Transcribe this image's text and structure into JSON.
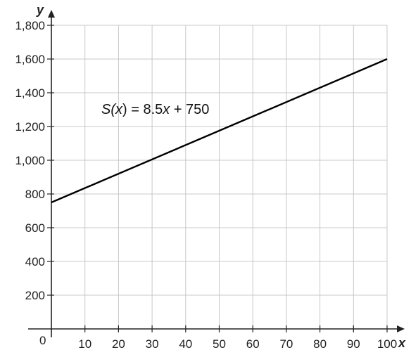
{
  "chart_data": {
    "type": "line",
    "xlabel": "x",
    "ylabel": "y",
    "xlim": [
      0,
      100
    ],
    "ylim": [
      0,
      1800
    ],
    "x_ticks": [
      10,
      20,
      30,
      40,
      50,
      60,
      70,
      80,
      90,
      100
    ],
    "y_ticks": [
      200,
      400,
      600,
      800,
      1000,
      1200,
      1400,
      1600,
      1800
    ],
    "x_tick_labels": [
      "10",
      "20",
      "30",
      "40",
      "50",
      "60",
      "70",
      "80",
      "90",
      "100"
    ],
    "y_tick_labels": [
      "200",
      "400",
      "600",
      "800",
      "1,000",
      "1,200",
      "1,400",
      "1,600",
      "1,800"
    ],
    "origin_label": "0",
    "grid": true,
    "series": [
      {
        "x": [
          0,
          100
        ],
        "y": [
          750,
          1600
        ],
        "color": "#000000"
      }
    ],
    "annotation": {
      "prefix": "S(",
      "var": "x",
      "mid": ") = 8.5",
      "var2": "x",
      "suffix": " + 750"
    }
  }
}
